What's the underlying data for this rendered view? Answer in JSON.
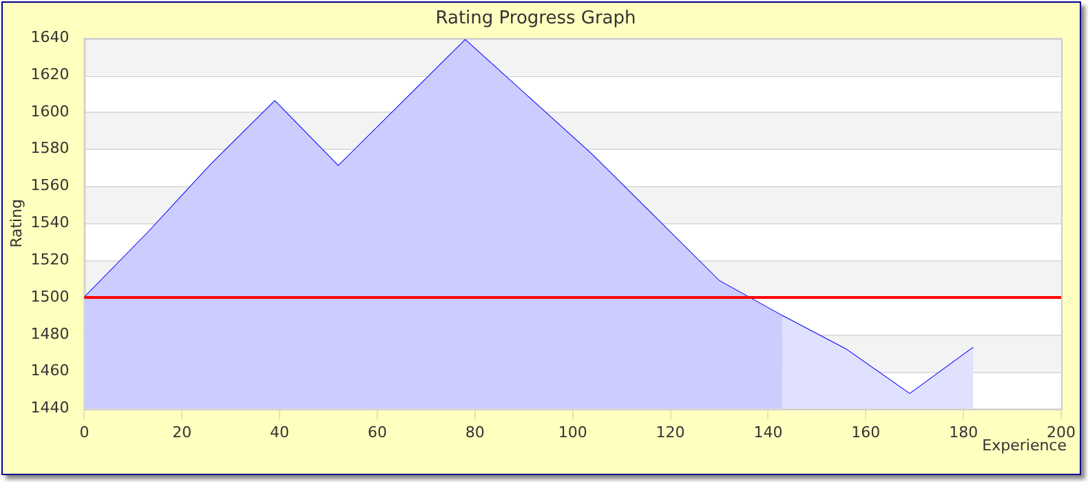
{
  "chart_data": {
    "type": "area",
    "title": "Rating Progress Graph",
    "xlabel": "Experience",
    "ylabel": "Rating",
    "x": [
      0,
      13,
      26,
      39,
      52,
      65,
      78,
      91,
      104,
      117,
      130,
      143,
      156,
      169,
      182
    ],
    "series": [
      {
        "type": "area",
        "color": "#ccccff",
        "values": [
          1500,
          1535,
          1572,
          1606,
          1571,
          1605,
          1639,
          1608,
          1577,
          1543,
          1509,
          1490,
          null,
          null,
          null
        ]
      },
      {
        "type": "area",
        "color": "#e0e0ff",
        "values": [
          null,
          null,
          null,
          null,
          null,
          null,
          null,
          null,
          null,
          null,
          null,
          1490,
          1472,
          1448,
          1473
        ]
      },
      {
        "type": "line",
        "color": "#0000ff",
        "values": [
          1500,
          1535,
          1572,
          1606,
          1571,
          1605,
          1639,
          1608,
          1577,
          1543,
          1509,
          1490,
          1472,
          1448,
          1473
        ]
      }
    ],
    "xlim": [
      0,
      200
    ],
    "xticks": [
      0,
      20,
      40,
      60,
      80,
      100,
      120,
      140,
      160,
      180,
      200
    ],
    "ylim": [
      1440,
      1640
    ],
    "yticks": [
      1440,
      1460,
      1480,
      1500,
      1520,
      1540,
      1560,
      1580,
      1600,
      1620,
      1640
    ],
    "ref_lines": [
      {
        "axis": "y",
        "value": 1500,
        "color": "#ff0000"
      }
    ],
    "grid": true,
    "legend": false,
    "marker": "none"
  }
}
